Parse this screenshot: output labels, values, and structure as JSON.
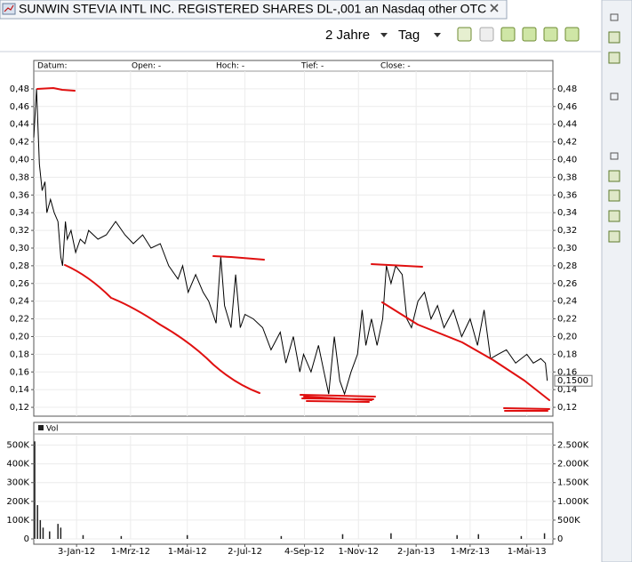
{
  "window": {
    "title": "SUNWIN STEVIA INTL INC. REGISTERED SHARES DL-,001 an Nasdaq other OTC",
    "period": "2 Jahre",
    "interval": "Tag"
  },
  "chart_data": [
    {
      "type": "line",
      "info_labels": [
        "Datum:",
        "Open: -",
        "Hoch: -",
        "Tief: -",
        "Close: -"
      ],
      "color": "#000000",
      "x": [
        "2011-11-18",
        "2011-11-21",
        "2011-11-24",
        "2011-11-27",
        "2011-11-30",
        "2011-12-02",
        "2011-12-06",
        "2011-12-10",
        "2011-12-14",
        "2011-12-17",
        "2011-12-19",
        "2011-12-22",
        "2011-12-24",
        "2011-12-28",
        "2012-01-02",
        "2012-01-07",
        "2012-01-12",
        "2012-01-16",
        "2012-01-26",
        "2012-02-04",
        "2012-02-14",
        "2012-02-24",
        "2012-03-04",
        "2012-03-14",
        "2012-03-23",
        "2012-04-02",
        "2012-04-11",
        "2012-04-21",
        "2012-04-26",
        "2012-05-02",
        "2012-05-10",
        "2012-05-18",
        "2012-05-24",
        "2012-06-01",
        "2012-06-06",
        "2012-06-10",
        "2012-06-17",
        "2012-06-22",
        "2012-06-27",
        "2012-07-02",
        "2012-07-11",
        "2012-07-21",
        "2012-07-30",
        "2012-08-09",
        "2012-08-15",
        "2012-08-23",
        "2012-08-30",
        "2012-09-03",
        "2012-09-11",
        "2012-09-19",
        "2012-09-25",
        "2012-09-30",
        "2012-10-06",
        "2012-10-12",
        "2012-10-17",
        "2012-10-24",
        "2012-10-31",
        "2012-11-05",
        "2012-11-09",
        "2012-11-15",
        "2012-11-21",
        "2012-11-27",
        "2012-12-01",
        "2012-12-06",
        "2012-12-11",
        "2012-12-18",
        "2012-12-23",
        "2012-12-28",
        "2013-01-04",
        "2013-01-11",
        "2013-01-18",
        "2013-01-25",
        "2013-02-01",
        "2013-02-11",
        "2013-02-20",
        "2013-03-01",
        "2013-03-09",
        "2013-03-16",
        "2013-03-23",
        "2013-03-31",
        "2013-04-09",
        "2013-04-19",
        "2013-05-01",
        "2013-05-08",
        "2013-05-16",
        "2013-05-21",
        "2013-05-23"
      ],
      "values": [
        0.425,
        0.48,
        0.395,
        0.365,
        0.375,
        0.34,
        0.355,
        0.34,
        0.33,
        0.29,
        0.28,
        0.33,
        0.31,
        0.32,
        0.295,
        0.31,
        0.305,
        0.32,
        0.31,
        0.315,
        0.33,
        0.315,
        0.305,
        0.315,
        0.3,
        0.305,
        0.28,
        0.265,
        0.28,
        0.25,
        0.27,
        0.25,
        0.24,
        0.215,
        0.29,
        0.235,
        0.21,
        0.27,
        0.21,
        0.225,
        0.22,
        0.21,
        0.185,
        0.205,
        0.17,
        0.2,
        0.16,
        0.18,
        0.16,
        0.19,
        0.16,
        0.135,
        0.2,
        0.15,
        0.135,
        0.16,
        0.18,
        0.23,
        0.19,
        0.22,
        0.19,
        0.22,
        0.28,
        0.26,
        0.28,
        0.27,
        0.22,
        0.21,
        0.24,
        0.25,
        0.22,
        0.235,
        0.21,
        0.23,
        0.2,
        0.22,
        0.19,
        0.23,
        0.175,
        0.18,
        0.185,
        0.17,
        0.18,
        0.17,
        0.175,
        0.17,
        0.15
      ],
      "last_value": {
        "value": 0.15,
        "label": "0,1500"
      },
      "xlim": [
        "2011-11-18",
        "2013-05-29"
      ],
      "ylim": [
        0.11,
        0.5
      ],
      "yticks": [
        {
          "value": 0.12,
          "label": "0,12"
        },
        {
          "value": 0.14,
          "label": "0,14"
        },
        {
          "value": 0.16,
          "label": "0,16"
        },
        {
          "value": 0.18,
          "label": "0,18"
        },
        {
          "value": 0.2,
          "label": "0,20"
        },
        {
          "value": 0.22,
          "label": "0,22"
        },
        {
          "value": 0.24,
          "label": "0,24"
        },
        {
          "value": 0.26,
          "label": "0,26"
        },
        {
          "value": 0.28,
          "label": "0,28"
        },
        {
          "value": 0.3,
          "label": "0,30"
        },
        {
          "value": 0.32,
          "label": "0,32"
        },
        {
          "value": 0.34,
          "label": "0,34"
        },
        {
          "value": 0.36,
          "label": "0,36"
        },
        {
          "value": 0.38,
          "label": "0,38"
        },
        {
          "value": 0.4,
          "label": "0,40"
        },
        {
          "value": 0.42,
          "label": "0,42"
        },
        {
          "value": 0.44,
          "label": "0,44"
        },
        {
          "value": 0.46,
          "label": "0,46"
        },
        {
          "value": 0.48,
          "label": "0,48"
        }
      ],
      "grid": true
    },
    {
      "type": "bar",
      "x": [
        "2011-11-19",
        "2011-11-22",
        "2011-11-25",
        "2011-11-28",
        "2011-12-05",
        "2011-12-14",
        "2011-12-17",
        "2012-01-10",
        "2012-02-20",
        "2012-05-01",
        "2012-08-10",
        "2012-10-15",
        "2012-12-06",
        "2013-02-15",
        "2013-03-10",
        "2013-04-25",
        "2013-05-20"
      ],
      "series": [
        {
          "name": "Vol",
          "color": "#222222",
          "values": [
            520000,
            180000,
            100000,
            60000,
            40000,
            80000,
            60000,
            20000,
            15000,
            20000,
            15000,
            25000,
            30000,
            20000,
            25000,
            15000,
            30000
          ]
        }
      ],
      "xlim": [
        "2011-11-18",
        "2013-05-29"
      ],
      "xticks": [
        {
          "value": "2012-01-03",
          "label": "3-Jan-12"
        },
        {
          "value": "2012-03-01",
          "label": "1-Mrz-12"
        },
        {
          "value": "2012-05-01",
          "label": "1-Mai-12"
        },
        {
          "value": "2012-07-02",
          "label": "2-Jul-12"
        },
        {
          "value": "2012-09-04",
          "label": "4-Sep-12"
        },
        {
          "value": "2012-11-01",
          "label": "1-Nov-12"
        },
        {
          "value": "2013-01-02",
          "label": "2-Jan-13"
        },
        {
          "value": "2013-03-01",
          "label": "1-Mrz-13"
        },
        {
          "value": "2013-05-01",
          "label": "1-Mai-13"
        }
      ],
      "ylim": [
        0,
        550000
      ],
      "yticks": [
        0,
        {
          "value": 100000,
          "label": "100K"
        },
        {
          "value": 200000,
          "label": "200K"
        },
        {
          "value": 300000,
          "label": "300K"
        },
        {
          "value": 400000,
          "label": "400K"
        },
        {
          "value": 500000,
          "label": "500K"
        }
      ],
      "y2lim": [
        0,
        2750000
      ],
      "y2ticks": [
        0,
        {
          "value": 500000,
          "label": "500K"
        },
        {
          "value": 1000000,
          "label": "1.000K"
        },
        {
          "value": 1500000,
          "label": "1.500K"
        },
        {
          "value": 2000000,
          "label": "2.000K"
        },
        {
          "value": 2500000,
          "label": "2.500K"
        }
      ],
      "grid": true
    }
  ]
}
